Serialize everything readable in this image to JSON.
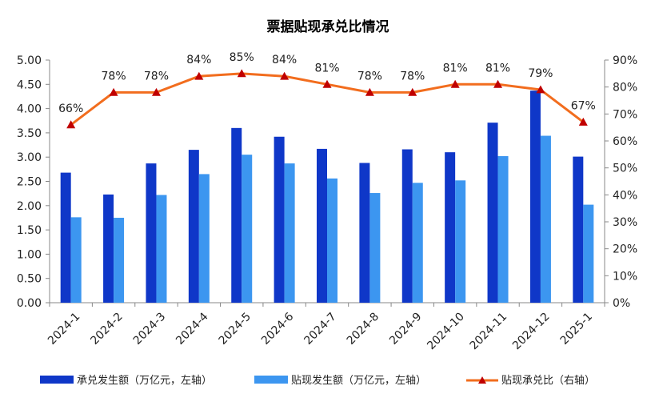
{
  "chart_data": {
    "type": "bar",
    "title": "票据贴现承兑比情况",
    "categories": [
      "2024-1",
      "2024-2",
      "2024-3",
      "2024-4",
      "2024-5",
      "2024-6",
      "2024-7",
      "2024-8",
      "2024-9",
      "2024-10",
      "2024-11",
      "2024-12",
      "2025-1"
    ],
    "series": [
      {
        "name": "承兑发生额（万亿元，左轴）",
        "type": "bar",
        "axis": "left",
        "color": "#0f37c8",
        "values": [
          2.68,
          2.23,
          2.87,
          3.15,
          3.6,
          3.42,
          3.17,
          2.88,
          3.16,
          3.1,
          3.71,
          4.37,
          3.01
        ]
      },
      {
        "name": "贴现发生额（万亿元，左轴）",
        "type": "bar",
        "axis": "left",
        "color": "#3c96f0",
        "values": [
          1.76,
          1.75,
          2.22,
          2.65,
          3.05,
          2.87,
          2.56,
          2.26,
          2.47,
          2.52,
          3.02,
          3.44,
          2.02
        ]
      },
      {
        "name": "贴现承兑比（右轴）",
        "type": "line",
        "axis": "right",
        "color": "#f26d1e",
        "marker_color": "#c00000",
        "values": [
          66,
          78,
          78,
          84,
          85,
          84,
          81,
          78,
          78,
          81,
          81,
          79,
          67
        ],
        "labels": [
          "66%",
          "78%",
          "78%",
          "84%",
          "85%",
          "84%",
          "81%",
          "78%",
          "78%",
          "81%",
          "81%",
          "79%",
          "67%"
        ]
      }
    ],
    "left_axis": {
      "min": 0,
      "max": 5,
      "step": 0.5,
      "ticks": [
        "0.00",
        "0.50",
        "1.00",
        "1.50",
        "2.00",
        "2.50",
        "3.00",
        "3.50",
        "4.00",
        "4.50",
        "5.00"
      ]
    },
    "right_axis": {
      "min": 0,
      "max": 90,
      "step": 10,
      "ticks": [
        "0%",
        "10%",
        "20%",
        "30%",
        "40%",
        "50%",
        "60%",
        "70%",
        "80%",
        "90%"
      ]
    },
    "grid": false,
    "legend_position": "bottom"
  }
}
